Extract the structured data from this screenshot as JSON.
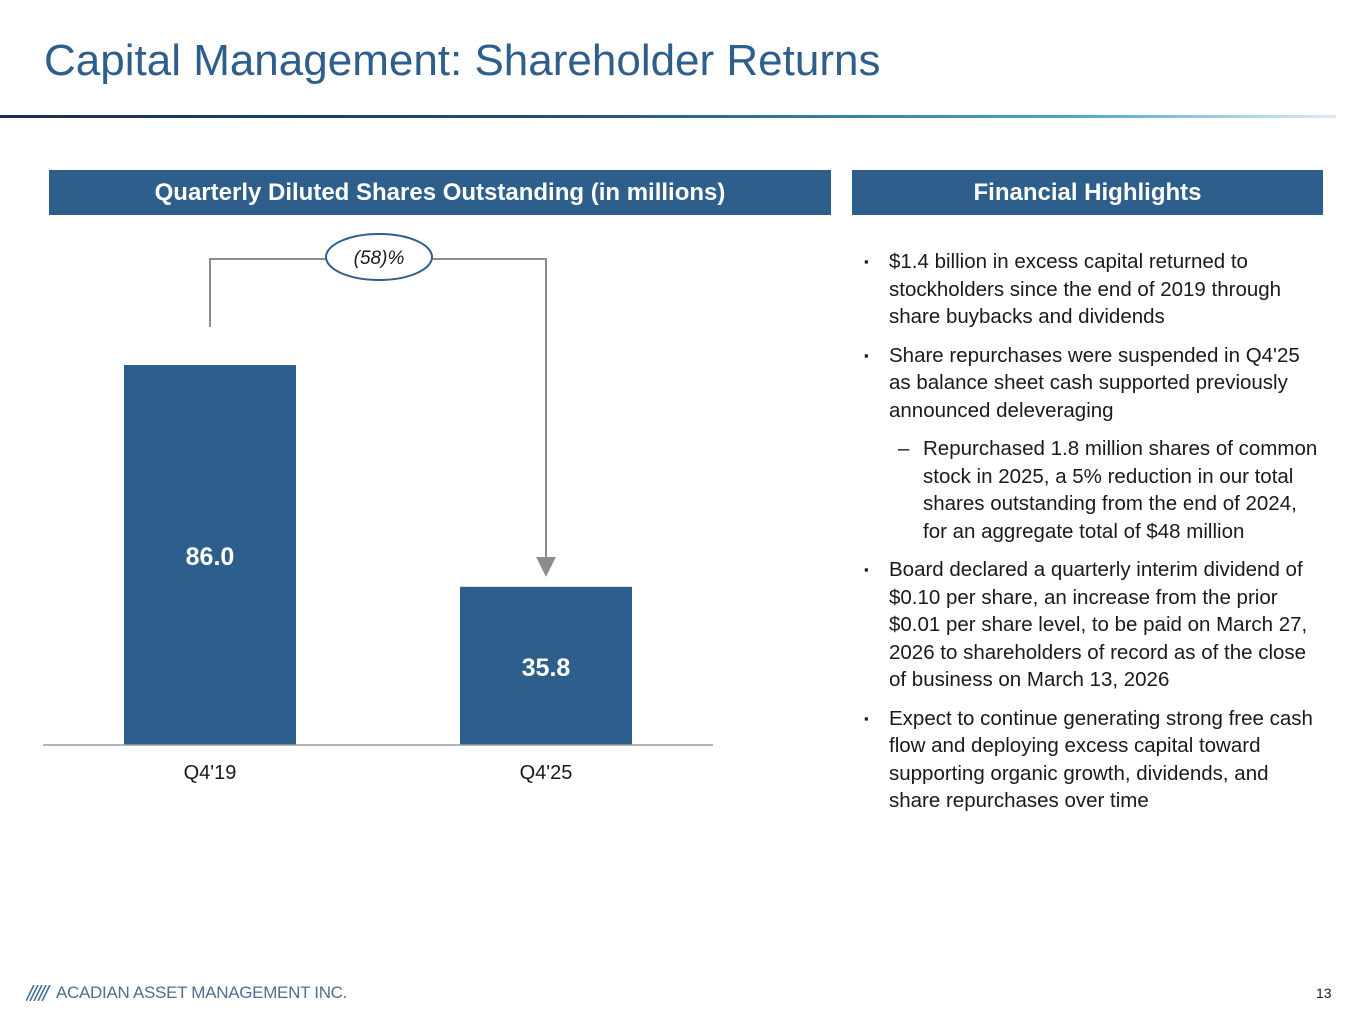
{
  "slide": {
    "title": "Capital Management: Shareholder Returns",
    "page_number": "13"
  },
  "chart_header": "Quarterly Diluted Shares Outstanding (in millions)",
  "financial_header": "Financial Highlights",
  "colors": {
    "title": "#2e5e8c",
    "bar": "#2e5e8c",
    "header_bg": "#2e5e8c",
    "connector": "#8c8c8c"
  },
  "chart_data": {
    "type": "bar",
    "title": "Quarterly Diluted Shares Outstanding (in millions)",
    "categories": [
      "Q4'19",
      "Q4'25"
    ],
    "values": [
      86.0,
      35.8
    ],
    "value_labels": [
      "86.0",
      "35.8"
    ],
    "ylim": [
      0,
      86.0
    ],
    "xlabel": "",
    "ylabel": "",
    "grid": false,
    "annotation": {
      "label": "(58)%",
      "from_category": "Q4'19",
      "to_category": "Q4'25"
    }
  },
  "highlights": [
    {
      "type": "bullet",
      "text": "$1.4 billion in excess capital returned to stockholders since the end of 2019 through share buybacks and dividends"
    },
    {
      "type": "bullet",
      "text": "Share repurchases were suspended in Q4'25 as balance sheet cash supported previously announced deleveraging"
    },
    {
      "type": "sub",
      "text": "Repurchased 1.8 million shares of common stock in 2025, a 5% reduction in our total shares outstanding from the end of 2024, for an aggregate total of $48 million"
    },
    {
      "type": "bullet",
      "text": "Board declared a quarterly interim dividend of $0.10 per share, an increase from the prior $0.01 per share level, to be paid on March 27, 2026 to shareholders of record as of the close of business on March 13, 2026"
    },
    {
      "type": "bullet",
      "text": "Expect to continue generating strong free cash flow and deploying excess capital toward supporting organic growth, dividends, and share repurchases over time"
    }
  ],
  "bullet_markers": {
    "primary": "▪",
    "secondary": "–"
  },
  "footer": {
    "logo_text": "ACADIAN ASSET MANAGEMENT INC.",
    "logo_icon": "acadian-stripes-icon"
  }
}
